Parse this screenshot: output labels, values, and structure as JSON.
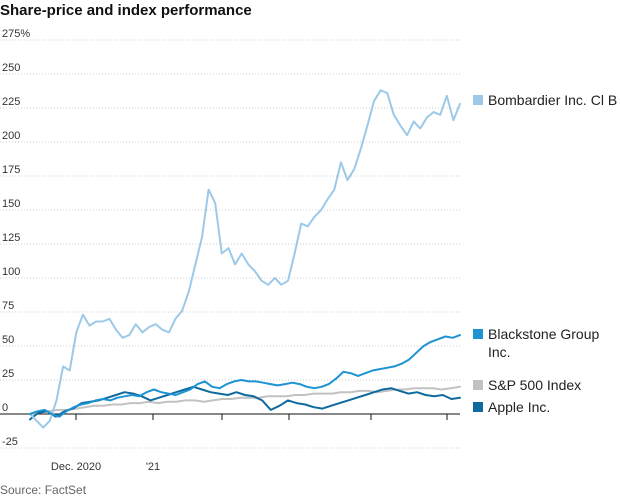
{
  "title": "Share-price and index performance",
  "source": "Source: FactSet",
  "chart_data": {
    "type": "line",
    "title": "Share-price and index performance",
    "xlabel": "",
    "ylabel": "",
    "ylim": [
      -25,
      275
    ],
    "yticks": [
      275,
      250,
      225,
      200,
      175,
      150,
      125,
      100,
      75,
      50,
      25,
      0,
      -25
    ],
    "ytick_labels": [
      "275%",
      "250",
      "225",
      "200",
      "175",
      "150",
      "125",
      "100",
      "75",
      "50",
      "25",
      "0",
      "-25"
    ],
    "xtick_labels": [
      "Dec. 2020",
      "'21"
    ],
    "grid": true,
    "legend_placement": "right",
    "series": [
      {
        "name": "Bombardier Inc. Cl B",
        "color": "#9cc9e8",
        "values": [
          0,
          -5,
          -10,
          -5,
          10,
          35,
          32,
          60,
          73,
          65,
          68,
          68,
          70,
          62,
          56,
          58,
          66,
          60,
          64,
          66,
          62,
          60,
          70,
          76,
          90,
          110,
          130,
          165,
          155,
          118,
          122,
          110,
          118,
          110,
          105,
          98,
          95,
          100,
          95,
          98,
          118,
          140,
          138,
          145,
          150,
          158,
          165,
          185,
          172,
          180,
          195,
          212,
          230,
          238,
          236,
          220,
          212,
          205,
          215,
          210,
          218,
          222,
          220,
          234,
          216,
          228
        ]
      },
      {
        "name": "Blackstone Group Inc.",
        "color": "#1d93d3",
        "values": [
          0,
          2,
          3,
          0,
          -2,
          2,
          5,
          7,
          8,
          10,
          11,
          10,
          12,
          13,
          14,
          13,
          16,
          18,
          16,
          15,
          14,
          16,
          18,
          22,
          24,
          20,
          19,
          22,
          24,
          25,
          24,
          24,
          23,
          22,
          21,
          22,
          23,
          22,
          20,
          19,
          20,
          22,
          26,
          31,
          30,
          28,
          30,
          32,
          33,
          34,
          35,
          37,
          40,
          45,
          50,
          53,
          55,
          57,
          56,
          58
        ]
      },
      {
        "name": "S&P 500 Index",
        "color": "#c2c2c2",
        "values": [
          0,
          1,
          2,
          3,
          3,
          4,
          5,
          6,
          6,
          7,
          7,
          8,
          8,
          9,
          8,
          9,
          9,
          10,
          10,
          9,
          10,
          11,
          11,
          12,
          12,
          12,
          13,
          13,
          13,
          14,
          14,
          15,
          15,
          15,
          16,
          16,
          17,
          17,
          16,
          17,
          18,
          18,
          19,
          19,
          19,
          18,
          19,
          20
        ]
      },
      {
        "name": "Apple Inc.",
        "color": "#0f6a9e",
        "values": [
          -4,
          1,
          2,
          -2,
          2,
          4,
          8,
          9,
          10,
          12,
          14,
          16,
          15,
          13,
          10,
          12,
          14,
          16,
          18,
          20,
          18,
          16,
          15,
          14,
          16,
          14,
          13,
          10,
          3,
          6,
          10,
          8,
          7,
          5,
          4,
          6,
          8,
          10,
          12,
          14,
          16,
          18,
          19,
          17,
          15,
          16,
          14,
          13,
          14,
          11,
          12
        ]
      }
    ]
  }
}
